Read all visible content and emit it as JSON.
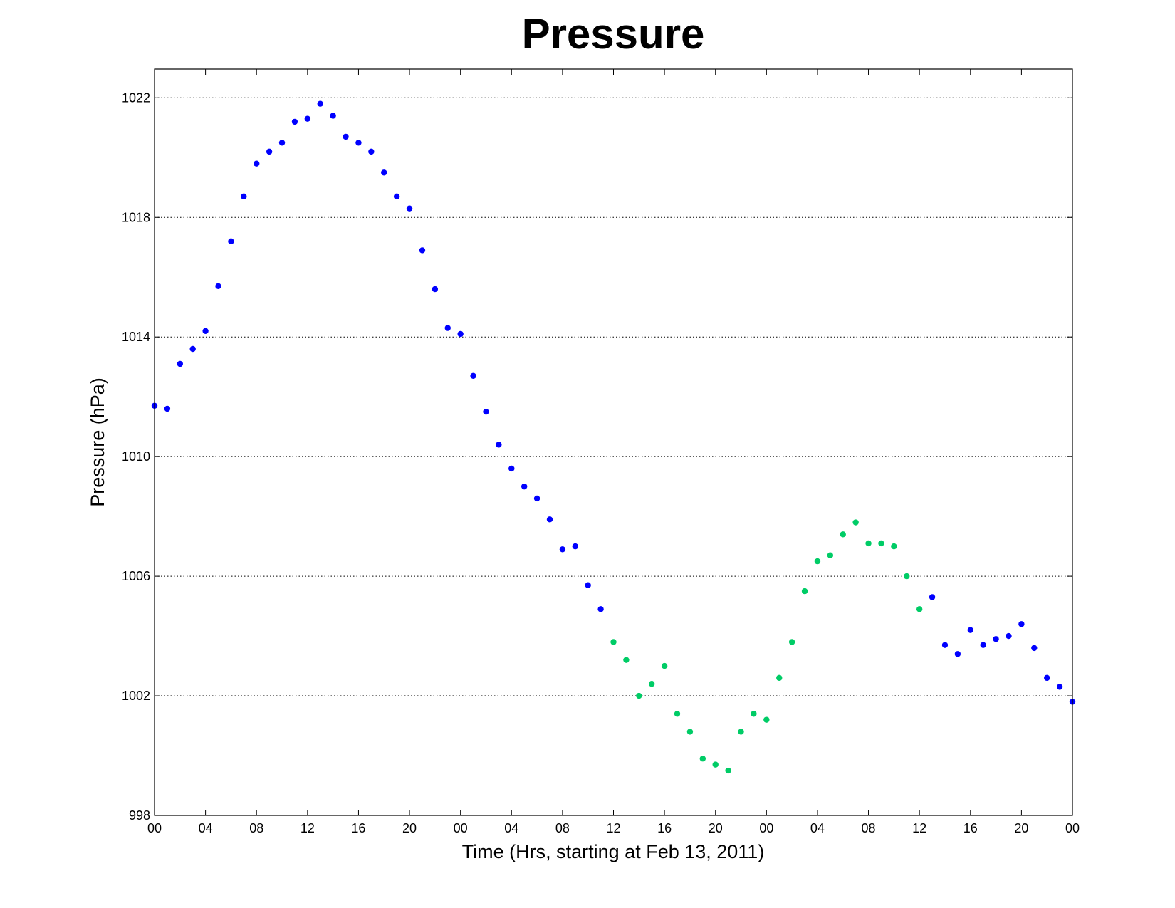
{
  "chart_data": {
    "type": "scatter",
    "title": "Pressure",
    "xlabel": "Time (Hrs, starting at Feb 13, 2011)",
    "ylabel": "Pressure (hPa)",
    "ylim": [
      998,
      1022.96
    ],
    "xlim": [
      0,
      72
    ],
    "yticks": [
      998,
      1002,
      1006,
      1010,
      1014,
      1018,
      1022
    ],
    "xticks": [
      0,
      4,
      8,
      12,
      16,
      20,
      24,
      28,
      32,
      36,
      40,
      44,
      48,
      52,
      56,
      60,
      64,
      68,
      72
    ],
    "xtick_labels": [
      "00",
      "04",
      "08",
      "12",
      "16",
      "20",
      "00",
      "04",
      "08",
      "12",
      "16",
      "20",
      "00",
      "04",
      "08",
      "12",
      "16",
      "20",
      "00"
    ],
    "grid": "horizontal dotted",
    "colors": {
      "primary": "#0000ff",
      "secondary": "#00cc66"
    },
    "x": [
      0,
      1,
      2,
      3,
      4,
      5,
      6,
      7,
      8,
      9,
      10,
      11,
      12,
      13,
      14,
      15,
      16,
      17,
      18,
      19,
      20,
      21,
      22,
      23,
      24,
      25,
      26,
      27,
      28,
      29,
      30,
      31,
      32,
      33,
      34,
      35,
      36,
      37,
      38,
      39,
      40,
      41,
      42,
      43,
      44,
      45,
      46,
      47,
      48,
      49,
      50,
      51,
      52,
      53,
      54,
      55,
      56,
      57,
      58,
      59,
      60,
      61,
      62,
      63,
      64,
      65,
      66,
      67,
      68,
      69,
      70,
      71,
      72
    ],
    "y": [
      1011.7,
      1011.6,
      1013.1,
      1013.6,
      1014.2,
      1015.7,
      1017.2,
      1018.7,
      1019.8,
      1020.2,
      1020.5,
      1021.2,
      1021.3,
      1021.8,
      1021.4,
      1020.7,
      1020.5,
      1020.2,
      1019.5,
      1018.7,
      1018.3,
      1016.9,
      1015.6,
      1014.3,
      1014.1,
      1012.7,
      1011.5,
      1010.4,
      1009.6,
      1009.0,
      1008.6,
      1007.9,
      1006.9,
      1007.0,
      1005.7,
      1004.9,
      1003.8,
      1003.2,
      1002.0,
      1002.4,
      1003.0,
      1001.4,
      1000.8,
      999.9,
      999.7,
      999.5,
      1000.8,
      1001.4,
      1001.2,
      1002.6,
      1003.8,
      1005.5,
      1006.5,
      1006.7,
      1007.4,
      1007.8,
      1007.1,
      1007.1,
      1007.0,
      1006.0,
      1004.9,
      1005.3,
      1003.7,
      1003.4,
      1004.2,
      1003.7,
      1003.9,
      1004.0,
      1004.4,
      1003.6,
      1002.6,
      1002.3,
      1001.8
    ],
    "series_color_index": [
      0,
      0,
      0,
      0,
      0,
      0,
      0,
      0,
      0,
      0,
      0,
      0,
      0,
      0,
      0,
      0,
      0,
      0,
      0,
      0,
      0,
      0,
      0,
      0,
      0,
      0,
      0,
      0,
      0,
      0,
      0,
      0,
      0,
      0,
      0,
      0,
      1,
      1,
      1,
      1,
      1,
      1,
      1,
      1,
      1,
      1,
      1,
      1,
      1,
      1,
      1,
      1,
      1,
      1,
      1,
      1,
      1,
      1,
      1,
      1,
      1,
      0,
      0,
      0,
      0,
      0,
      0,
      0,
      0,
      0,
      0,
      0,
      0
    ]
  }
}
